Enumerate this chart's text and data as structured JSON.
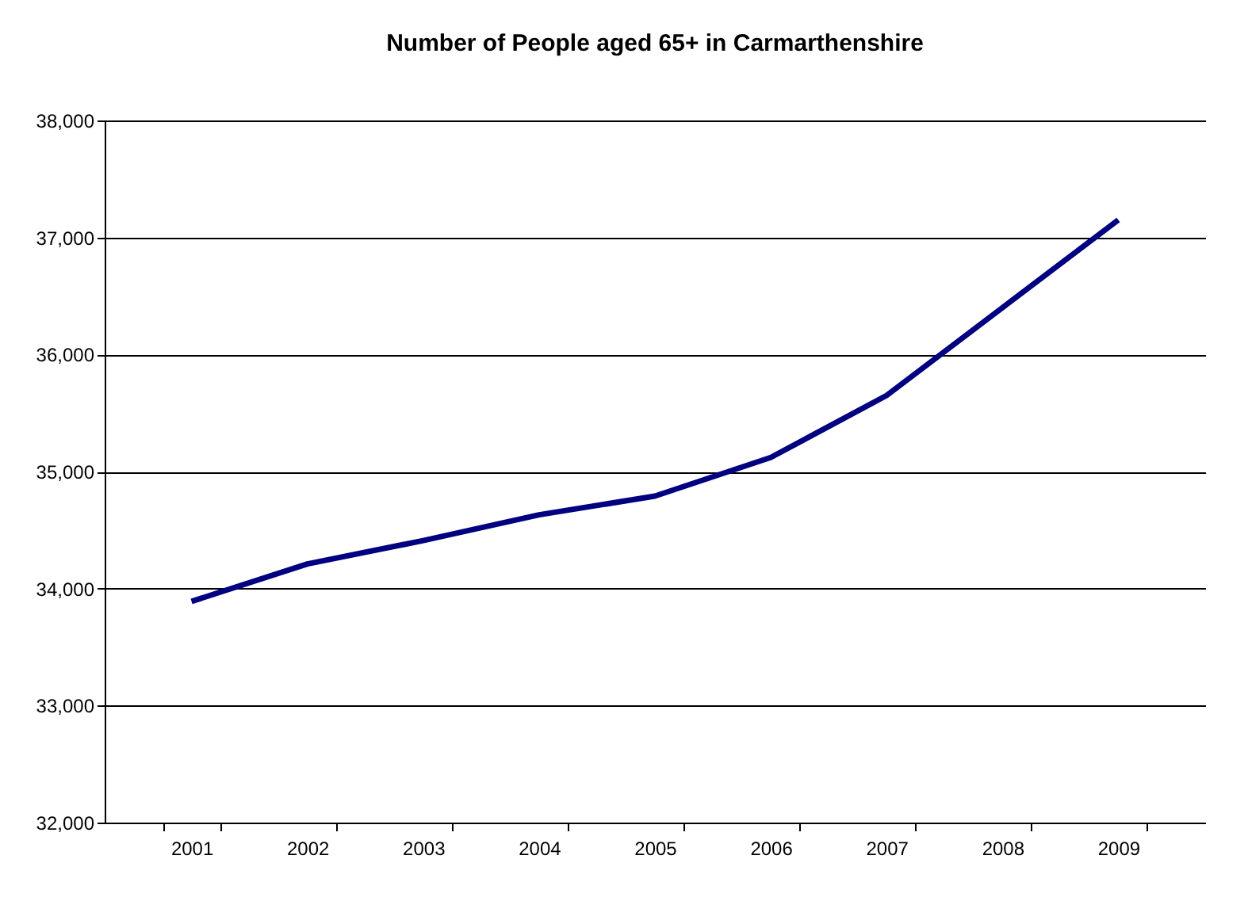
{
  "chart_data": {
    "type": "line",
    "title": "Number of People aged 65+ in Carmarthenshire",
    "categories": [
      "2001",
      "2002",
      "2003",
      "2004",
      "2005",
      "2006",
      "2007",
      "2008",
      "2009"
    ],
    "series": [
      {
        "color": "#000080",
        "values": [
          33890,
          34210,
          34410,
          34630,
          34790,
          35120,
          35650,
          36400,
          37150
        ]
      }
    ],
    "ylim": [
      32000,
      38000
    ],
    "yticks": [
      {
        "value": 32000,
        "label": "32,000"
      },
      {
        "value": 33000,
        "label": "33,000"
      },
      {
        "value": 34000,
        "label": "34,000"
      },
      {
        "value": 35000,
        "label": "35,000"
      },
      {
        "value": 36000,
        "label": "36,000"
      },
      {
        "value": 37000,
        "label": "37,000"
      },
      {
        "value": 38000,
        "label": "38,000"
      }
    ],
    "grid": "y",
    "marker": "none",
    "line_style": "solid"
  }
}
